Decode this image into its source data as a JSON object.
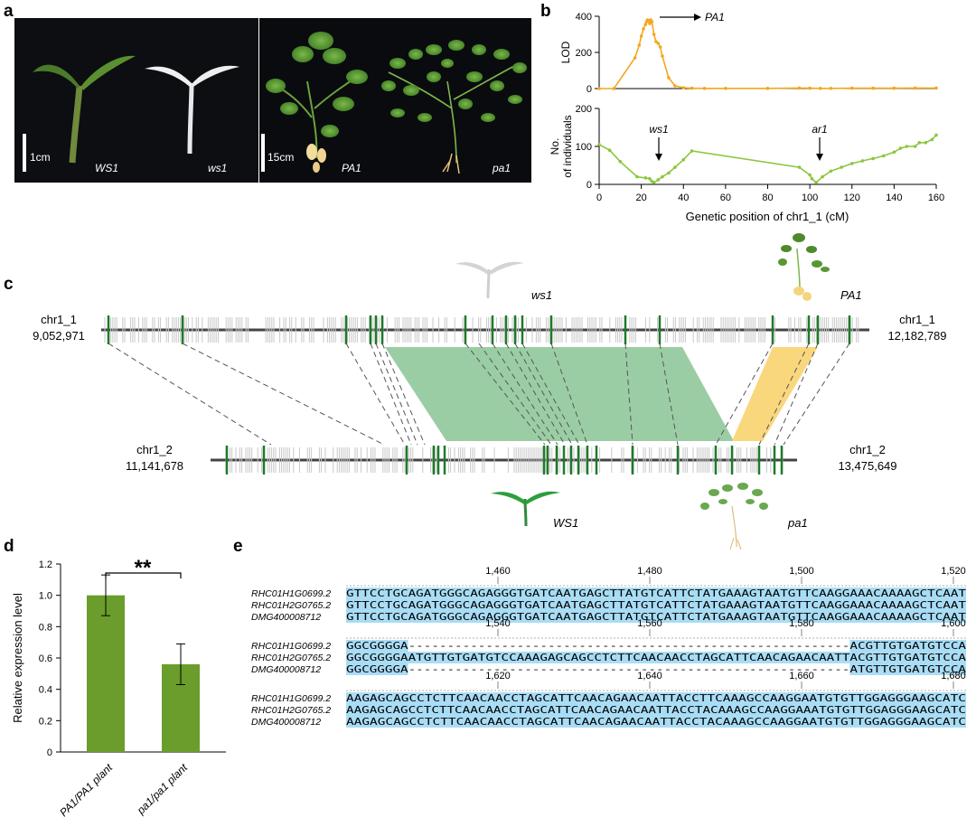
{
  "panels": {
    "a": "a",
    "b": "b",
    "c": "c",
    "d": "d",
    "e": "e"
  },
  "panel_a": {
    "scale_left": "1cm",
    "scale_right": "15cm",
    "labels": [
      "WS1",
      "ws1",
      "PA1",
      "pa1"
    ]
  },
  "panel_b": {
    "top_ylabel": "LOD",
    "top_arrow_label": "PA1",
    "bottom_ylabel_line1": "No.",
    "bottom_ylabel_line2": "of individuals",
    "xlabel": "Genetic position of chr1_1 (cM)",
    "arrow_ws1": "ws1",
    "arrow_ar1": "ar1"
  },
  "panel_c": {
    "top_chr": "chr1_1",
    "top_start": "9,052,971",
    "top_end": "12,182,789",
    "bottom_chr": "chr1_2",
    "bottom_start": "11,141,678",
    "bottom_end": "13,475,649",
    "label_ws1": "ws1",
    "label_PA1": "PA1",
    "label_WS1": "WS1",
    "label_pa1": "pa1"
  },
  "panel_d": {
    "ylabel": "Relative expression level",
    "significance": "**",
    "yticks": [
      "0",
      "0.2",
      "0.4",
      "0.6",
      "0.8",
      "1.0",
      "1.2"
    ]
  },
  "panel_e": {
    "names": [
      "RHC01H1G0699.2",
      "RHC01H2G0765.2",
      "DMG400008712"
    ],
    "blocks": [
      {
        "ticks": [
          "1,460",
          "1,480",
          "1,500",
          "1,520"
        ],
        "seqs": [
          "GTTCCTGCAGATGGGCAGAGGGTGATCAATGAGCTTATGTCATTCTATGAAAGTAATGTTCAAGGAAACAAAAGCTCAAT",
          "GTTCCTGCAGATGGGCAGAGGGTGATCAATGAGCTTATGTCATTCTATGAAAGTAATGTTCAAGGAAACAAAAGCTCAAT",
          "GTTCCTGCAGATGGGCAGAGGGTGATCAATGAGCTTATGTCATTCTATGAAAGTAATGTTCAAGGAAACAAAAGCTCAAT"
        ]
      },
      {
        "ticks": [
          "1,540",
          "1,560",
          "1,580",
          "1,600"
        ],
        "seqs": [
          "GGCGGGGA---------------------------------------------------------ACGTTGTGATGTCCA",
          "GGCGGGGAATGTTGTGATGTCCAAAGAGCAGCCTCTTCAACAACCTAGCATTCAACAGAACAATTACGTTGTGATGTCCA",
          "GGCGGGGA---------------------------------------------------------ATGTTGTGATGTCCA"
        ]
      },
      {
        "ticks": [
          "1,620",
          "1,640",
          "1,660",
          "1,680"
        ],
        "seqs": [
          "AAGAGCAGCCTCTTCAACAACCTAGCATTCAACAGAACAATTACCTTCAAAGCCAAGGAATGTGTTGGAGGGAAGCATC",
          "AAGAGCAGCCTCTTCAACAACCTAGCATTCAACAGAACAATTACCTACAAAGCCAAGGAAATGTGTTGGAGGGAAGCATC",
          "AAGAGCAGCCTCTTCAACAACCTAGCATTCAACAGAACAATTACCTACAAAGCCAAGGAATGTGTTGGAGGGAAGCATC"
        ]
      }
    ]
  },
  "chart_data": [
    {
      "type": "line",
      "ylabel": "LOD",
      "xlim": [
        0,
        160
      ],
      "ylim": [
        0,
        400
      ],
      "x": [
        0,
        7,
        17,
        19,
        20,
        21,
        22,
        22.5,
        23,
        23.5,
        24,
        24.5,
        25,
        26,
        27,
        28,
        29,
        30,
        33,
        36,
        40,
        44,
        50,
        60,
        80,
        95,
        100,
        105,
        110,
        120,
        130,
        140,
        150,
        160
      ],
      "y": [
        0,
        0,
        170,
        240,
        290,
        330,
        355,
        370,
        380,
        375,
        360,
        380,
        370,
        300,
        260,
        250,
        230,
        180,
        60,
        15,
        5,
        2,
        1,
        1,
        1,
        3,
        2,
        1,
        1,
        2,
        2,
        2,
        3,
        3
      ],
      "color": "#f2a81d"
    },
    {
      "type": "line",
      "xlabel": "Genetic position of chr1_1 (cM)",
      "ylabel": "No. of individuals",
      "xlim": [
        0,
        160
      ],
      "ylim": [
        0,
        200
      ],
      "xticks": [
        0,
        20,
        40,
        60,
        80,
        100,
        120,
        140,
        160
      ],
      "yticks": [
        0,
        100,
        200
      ],
      "x": [
        0,
        5,
        10,
        18,
        22,
        24,
        25,
        26,
        28,
        30,
        33,
        36,
        40,
        44,
        95,
        100,
        101,
        103,
        106,
        110,
        115,
        120,
        125,
        130,
        135,
        140,
        143,
        146,
        150,
        152,
        155,
        158,
        160
      ],
      "y": [
        105,
        90,
        60,
        20,
        17,
        15,
        8,
        5,
        12,
        20,
        30,
        45,
        65,
        88,
        45,
        25,
        15,
        5,
        20,
        35,
        45,
        55,
        62,
        68,
        75,
        85,
        95,
        100,
        100,
        110,
        110,
        118,
        130
      ],
      "color": "#8cc63f"
    },
    {
      "type": "bar",
      "ylabel": "Relative expression level",
      "categories": [
        "PA1/PA1 plant",
        "pa1/pa1 plant"
      ],
      "values": [
        1.0,
        0.56
      ],
      "errors": [
        0.13,
        0.13
      ],
      "ylim": [
        0,
        1.2
      ],
      "color": "#6a9d2b"
    }
  ]
}
